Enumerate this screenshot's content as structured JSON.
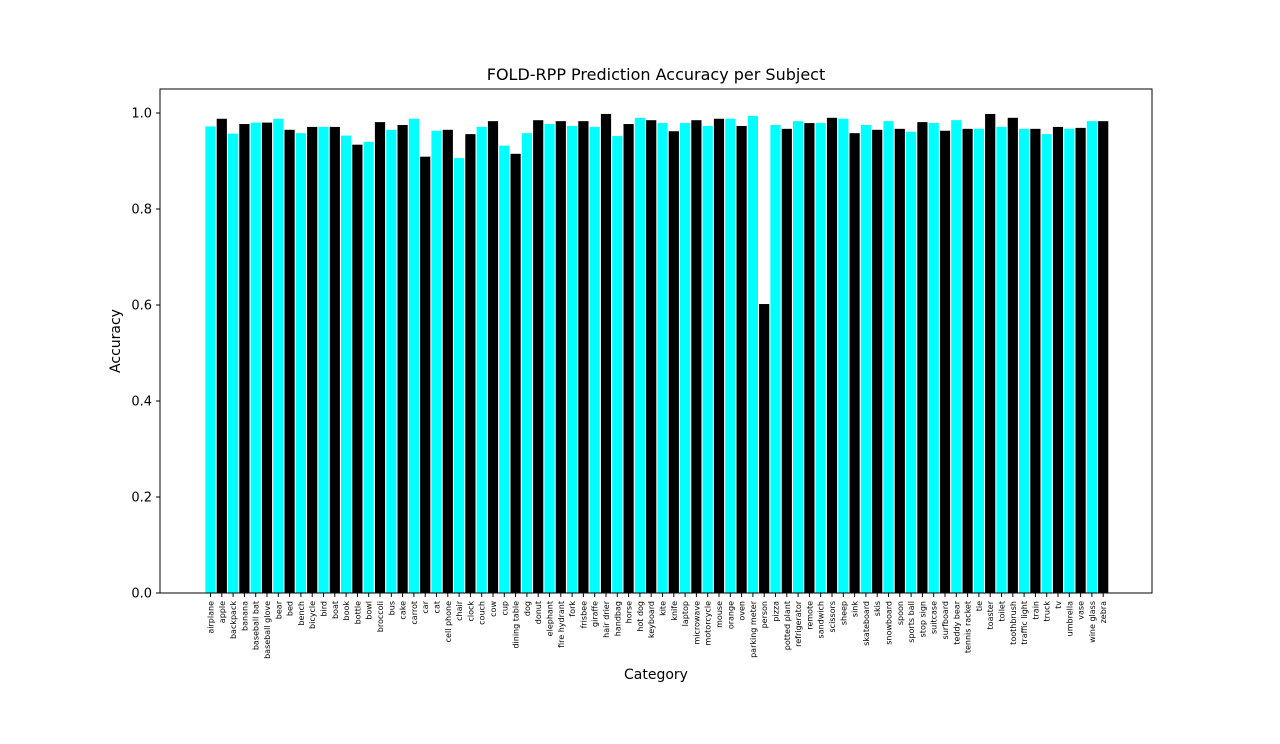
{
  "chart_data": {
    "type": "bar",
    "title": "FOLD-RPP Prediction Accuracy per Subject",
    "xlabel": "Category",
    "ylabel": "Accuracy",
    "ylim": [
      0,
      1.05
    ],
    "yticks": [
      "0.0",
      "0.2",
      "0.4",
      "0.6",
      "0.8",
      "1.0"
    ],
    "grid": false,
    "bar_colors": [
      "#00ffff",
      "#000000"
    ],
    "categories": [
      "airplane",
      "apple",
      "backpack",
      "banana",
      "baseball bat",
      "baseball glove",
      "bear",
      "bed",
      "bench",
      "bicycle",
      "bird",
      "boat",
      "book",
      "bottle",
      "bowl",
      "broccoli",
      "bus",
      "cake",
      "carrot",
      "car",
      "cat",
      "cell phone",
      "chair",
      "clock",
      "couch",
      "cow",
      "cup",
      "dining table",
      "dog",
      "donut",
      "elephant",
      "fire hydrant",
      "fork",
      "frisbee",
      "giraffe",
      "hair drier",
      "handbag",
      "horse",
      "hot dog",
      "keyboard",
      "kite",
      "knife",
      "laptop",
      "microwave",
      "motorcycle",
      "mouse",
      "orange",
      "oven",
      "parking meter",
      "person",
      "pizza",
      "potted plant",
      "refrigerator",
      "remote",
      "sandwich",
      "scissors",
      "sheep",
      "sink",
      "skateboard",
      "skis",
      "snowboard",
      "spoon",
      "sports ball",
      "stop sign",
      "suitcase",
      "surfboard",
      "teddy bear",
      "tennis racket",
      "tie",
      "toaster",
      "toilet",
      "toothbrush",
      "traffic light",
      "train",
      "truck",
      "tv",
      "umbrella",
      "vase",
      "wine glass",
      "zebra"
    ],
    "values": [
      0.972,
      0.988,
      0.957,
      0.977,
      0.98,
      0.98,
      0.988,
      0.965,
      0.958,
      0.971,
      0.971,
      0.971,
      0.953,
      0.934,
      0.94,
      0.981,
      0.965,
      0.975,
      0.988,
      0.909,
      0.963,
      0.965,
      0.906,
      0.956,
      0.971,
      0.983,
      0.932,
      0.915,
      0.958,
      0.985,
      0.977,
      0.983,
      0.973,
      0.983,
      0.971,
      0.998,
      0.952,
      0.977,
      0.99,
      0.985,
      0.979,
      0.962,
      0.979,
      0.985,
      0.973,
      0.988,
      0.988,
      0.973,
      0.994,
      0.602,
      0.975,
      0.967,
      0.983,
      0.979,
      0.979,
      0.99,
      0.988,
      0.958,
      0.975,
      0.965,
      0.983,
      0.967,
      0.961,
      0.981,
      0.979,
      0.963,
      0.985,
      0.967,
      0.967,
      0.998,
      0.971,
      0.99,
      0.967,
      0.967,
      0.956,
      0.971,
      0.967,
      0.969,
      0.983,
      0.983
    ]
  }
}
